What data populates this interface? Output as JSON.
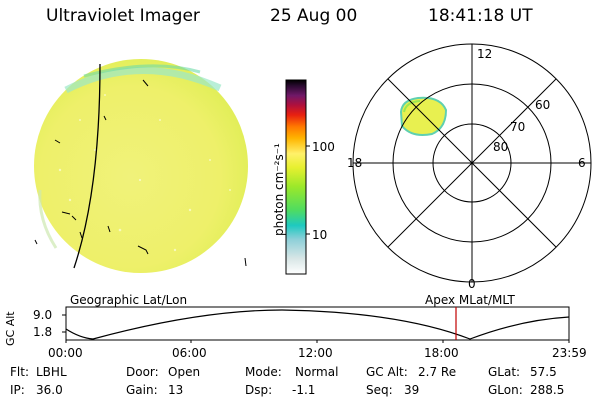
{
  "header": {
    "title": "Ultraviolet Imager",
    "date": "25 Aug 00",
    "time": "18:41:18 UT"
  },
  "colorbar": {
    "unit_label": "photon cm⁻²s⁻¹",
    "tick_100": "100",
    "tick_10": "10"
  },
  "polar": {
    "mlt_top": "12",
    "mlt_left": "18",
    "mlt_right": "6",
    "mlt_bottom": "0",
    "lat_60": "60",
    "lat_70": "70",
    "lat_80": "80"
  },
  "timeline": {
    "left_caption": "Geographic Lat/Lon",
    "right_caption": "Apex MLat/MLT",
    "ylabel": "GC Alt",
    "ytick_top": "9.0",
    "ytick_bottom": "1.8",
    "xticks": [
      "00:00",
      "06:00",
      "12:00",
      "18:00",
      "23:59"
    ],
    "marker_color": "#c00000"
  },
  "info": {
    "filter_label": "Flt:",
    "filter_value": "LBHL",
    "ip_label": "IP:",
    "ip_value": "36.0",
    "door_label": "Door:",
    "door_value": "Open",
    "gain_label": "Gain:",
    "gain_value": "13",
    "mode_label": "Mode:",
    "mode_value": "Normal",
    "dsp_label": "Dsp:",
    "dsp_value": "-1.1",
    "gcalt_label": "GC Alt:",
    "gcalt_value": "2.7 Re",
    "seq_label": "Seq:",
    "seq_value": "39",
    "glat_label": "GLat:",
    "glat_value": "57.5",
    "glon_label": "GLon:",
    "glon_value": "288.5"
  }
}
